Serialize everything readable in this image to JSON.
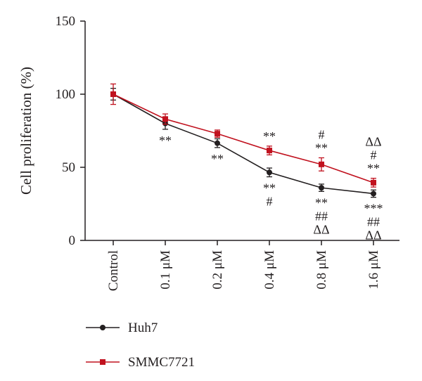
{
  "chart_data": {
    "type": "line",
    "title": "",
    "xlabel": "",
    "ylabel": "Cell proliferation (%)",
    "categories": [
      "Control",
      "0.1 μM",
      "0.2 μM",
      "0.4 μM",
      "0.8 μM",
      "1.6 μM"
    ],
    "ylim": [
      0,
      150
    ],
    "yticks": [
      0,
      50,
      100,
      150
    ],
    "grid": false,
    "legend_position": "bottom-left",
    "series": [
      {
        "name": "Huh7",
        "color": "#231f20",
        "marker": "circle",
        "values": [
          100,
          80,
          66.5,
          46.5,
          36,
          32
        ],
        "errors": [
          4,
          4,
          3,
          3,
          2.5,
          2.5
        ],
        "significance": [
          [],
          [
            "**"
          ],
          [
            "**"
          ],
          [
            "**",
            "#"
          ],
          [
            "**",
            "##",
            "ΔΔ"
          ],
          [
            "***",
            "##",
            "ΔΔ"
          ]
        ]
      },
      {
        "name": "SMMC7721",
        "color": "#c1121f",
        "marker": "square",
        "values": [
          100,
          83,
          73,
          61.5,
          52,
          39.5
        ],
        "errors": [
          7,
          3.5,
          2.5,
          3,
          4.5,
          3
        ],
        "significance": [
          [],
          [],
          [],
          [
            "**"
          ],
          [
            "#",
            "**"
          ],
          [
            "ΔΔ",
            "#",
            "**"
          ]
        ]
      }
    ]
  }
}
